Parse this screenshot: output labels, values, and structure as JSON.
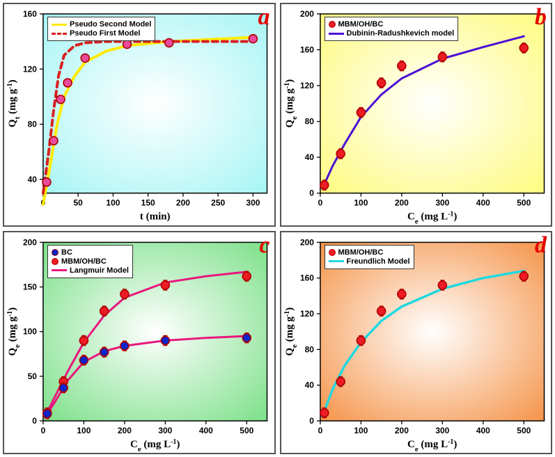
{
  "panels": {
    "a": {
      "letter": "a",
      "background_gradient": [
        "#a8f5f5",
        "#ffffff",
        "#a8f5f5"
      ],
      "border_color": "#555555",
      "xlabel": "t (min)",
      "ylabel": "Qt (mg g-1)",
      "xlim": [
        0,
        320
      ],
      "ylim": [
        30,
        160
      ],
      "xticks": [
        0,
        50,
        100,
        150,
        200,
        250,
        300
      ],
      "yticks": [
        40,
        80,
        120,
        160
      ],
      "legend_pos": "top-left",
      "legend": [
        {
          "type": "line",
          "color": "#ffeb00",
          "label": "Pseudo Second Model"
        },
        {
          "type": "dash",
          "color": "#d92020",
          "label": "Pseudo First Model"
        }
      ],
      "data_points": [
        {
          "x": 5,
          "y": 38,
          "color": "#e94b9c",
          "border": "#b00000"
        },
        {
          "x": 15,
          "y": 68,
          "color": "#e94b9c",
          "border": "#b00000"
        },
        {
          "x": 25,
          "y": 98,
          "color": "#e94b9c",
          "border": "#b00000"
        },
        {
          "x": 35,
          "y": 110,
          "color": "#e94b9c",
          "border": "#b00000"
        },
        {
          "x": 60,
          "y": 128,
          "color": "#e94b9c",
          "border": "#b00000"
        },
        {
          "x": 120,
          "y": 138,
          "color": "#e94b9c",
          "border": "#b00000"
        },
        {
          "x": 180,
          "y": 139,
          "color": "#e94b9c",
          "border": "#b00000"
        },
        {
          "x": 300,
          "y": 142,
          "color": "#e94b9c",
          "border": "#b00000"
        }
      ],
      "curves": [
        {
          "color": "#ffeb00",
          "width": 4,
          "dash": "none",
          "pts": [
            [
              0,
              22
            ],
            [
              10,
              50
            ],
            [
              20,
              80
            ],
            [
              30,
              100
            ],
            [
              45,
              115
            ],
            [
              60,
              125
            ],
            [
              90,
              133
            ],
            [
              120,
              137
            ],
            [
              180,
              140
            ],
            [
              300,
              143
            ]
          ]
        },
        {
          "color": "#d92020",
          "width": 4,
          "dash": "8,6",
          "pts": [
            [
              0,
              30
            ],
            [
              8,
              60
            ],
            [
              15,
              90
            ],
            [
              22,
              115
            ],
            [
              30,
              130
            ],
            [
              45,
              137
            ],
            [
              60,
              139
            ],
            [
              90,
              140
            ],
            [
              300,
              140
            ]
          ]
        }
      ],
      "marker_size": 6,
      "error_bar": 5,
      "label_fontsize": 15,
      "tick_fontsize": 12
    },
    "b": {
      "letter": "b",
      "background_gradient": [
        "#fffb80",
        "#ffffff",
        "#fffb80"
      ],
      "border_color": "#555555",
      "xlabel": "Ce (mg L-1)",
      "ylabel": "Qe (mg g-1)",
      "xlim": [
        0,
        550
      ],
      "ylim": [
        0,
        200
      ],
      "xticks": [
        0,
        100,
        200,
        300,
        400,
        500
      ],
      "yticks": [
        0,
        40,
        80,
        120,
        160,
        200
      ],
      "legend_pos": "top-left",
      "legend": [
        {
          "type": "circ",
          "fill": "#ed1c24",
          "border": "#b00000",
          "label": "MBM/OH/BC"
        },
        {
          "type": "line",
          "color": "#4b0fd6",
          "label": "Dubinin-Radushkevich model"
        }
      ],
      "data_points": [
        {
          "x": 10,
          "y": 9,
          "color": "#ed1c24",
          "border": "#b00000"
        },
        {
          "x": 50,
          "y": 44,
          "color": "#ed1c24",
          "border": "#b00000"
        },
        {
          "x": 100,
          "y": 90,
          "color": "#ed1c24",
          "border": "#b00000"
        },
        {
          "x": 150,
          "y": 123,
          "color": "#ed1c24",
          "border": "#b00000"
        },
        {
          "x": 200,
          "y": 142,
          "color": "#ed1c24",
          "border": "#b00000"
        },
        {
          "x": 300,
          "y": 152,
          "color": "#ed1c24",
          "border": "#b00000"
        },
        {
          "x": 500,
          "y": 162,
          "color": "#ed1c24",
          "border": "#b00000"
        }
      ],
      "curves": [
        {
          "color": "#4b0fd6",
          "width": 3,
          "dash": "none",
          "pts": [
            [
              5,
              5
            ],
            [
              30,
              30
            ],
            [
              60,
              55
            ],
            [
              100,
              85
            ],
            [
              150,
              110
            ],
            [
              200,
              128
            ],
            [
              300,
              150
            ],
            [
              400,
              163
            ],
            [
              500,
              175
            ]
          ]
        }
      ],
      "marker_size": 6,
      "error_bar": 7,
      "label_fontsize": 15,
      "tick_fontsize": 12
    },
    "c": {
      "letter": "c",
      "background_gradient": [
        "#7de08a",
        "#ffffff",
        "#7de08a"
      ],
      "border_color": "#555555",
      "xlabel": "Ce (mg L-1)",
      "ylabel": "Qe (mg g-1)",
      "xlim": [
        0,
        550
      ],
      "ylim": [
        0,
        200
      ],
      "xticks": [
        0,
        100,
        200,
        300,
        400,
        500
      ],
      "yticks": [
        0,
        50,
        100,
        150,
        200
      ],
      "legend_pos": "top-left",
      "legend": [
        {
          "type": "circ",
          "fill": "#0b24c9",
          "border": "#b00000",
          "label": "BC"
        },
        {
          "type": "circ",
          "fill": "#ed1c24",
          "border": "#b00000",
          "label": "MBM/OH/BC"
        },
        {
          "type": "line",
          "color": "#e8177d",
          "label": "Langmuir Model"
        }
      ],
      "series": [
        {
          "name": "MBM/OH/BC",
          "marker_fill": "#ed1c24",
          "marker_border": "#b00000",
          "pts": [
            [
              10,
              9
            ],
            [
              50,
              44
            ],
            [
              100,
              90
            ],
            [
              150,
              123
            ],
            [
              200,
              142
            ],
            [
              300,
              152
            ],
            [
              500,
              162
            ]
          ]
        },
        {
          "name": "BC",
          "marker_fill": "#0b24c9",
          "marker_border": "#b00000",
          "pts": [
            [
              10,
              8
            ],
            [
              50,
              37
            ],
            [
              100,
              68
            ],
            [
              150,
              77
            ],
            [
              200,
              84
            ],
            [
              300,
              90
            ],
            [
              500,
              93
            ]
          ]
        }
      ],
      "curves": [
        {
          "color": "#e8177d",
          "width": 3,
          "dash": "none",
          "pts": [
            [
              5,
              5
            ],
            [
              30,
              28
            ],
            [
              60,
              55
            ],
            [
              100,
              88
            ],
            [
              150,
              118
            ],
            [
              200,
              138
            ],
            [
              300,
              155
            ],
            [
              400,
              162
            ],
            [
              500,
              167
            ]
          ]
        },
        {
          "color": "#e8177d",
          "width": 3,
          "dash": "none",
          "pts": [
            [
              5,
              4
            ],
            [
              30,
              22
            ],
            [
              60,
              45
            ],
            [
              100,
              66
            ],
            [
              150,
              78
            ],
            [
              200,
              84
            ],
            [
              300,
              90
            ],
            [
              400,
              93
            ],
            [
              500,
              95
            ]
          ]
        }
      ],
      "marker_size": 6,
      "error_bar": 7,
      "label_fontsize": 15,
      "tick_fontsize": 12
    },
    "d": {
      "letter": "d",
      "background_gradient": [
        "#f5944a",
        "#ffffff",
        "#f5944a"
      ],
      "border_color": "#555555",
      "xlabel": "Ce (mg L-1)",
      "ylabel": "Qe (mg g-1)",
      "xlim": [
        0,
        550
      ],
      "ylim": [
        0,
        200
      ],
      "xticks": [
        0,
        100,
        200,
        300,
        400,
        500
      ],
      "yticks": [
        0,
        40,
        80,
        120,
        160,
        200
      ],
      "legend_pos": "top-left",
      "legend": [
        {
          "type": "circ",
          "fill": "#ed1c24",
          "border": "#b00000",
          "label": "MBM/OH/BC"
        },
        {
          "type": "line",
          "color": "#1fd9e0",
          "label": "Freundlich Model"
        }
      ],
      "data_points": [
        {
          "x": 10,
          "y": 9,
          "color": "#ed1c24",
          "border": "#b00000"
        },
        {
          "x": 50,
          "y": 44,
          "color": "#ed1c24",
          "border": "#b00000"
        },
        {
          "x": 100,
          "y": 90,
          "color": "#ed1c24",
          "border": "#b00000"
        },
        {
          "x": 150,
          "y": 123,
          "color": "#ed1c24",
          "border": "#b00000"
        },
        {
          "x": 200,
          "y": 142,
          "color": "#ed1c24",
          "border": "#b00000"
        },
        {
          "x": 300,
          "y": 152,
          "color": "#ed1c24",
          "border": "#b00000"
        },
        {
          "x": 500,
          "y": 162,
          "color": "#ed1c24",
          "border": "#b00000"
        }
      ],
      "curves": [
        {
          "color": "#1fd9e0",
          "width": 3.5,
          "dash": "none",
          "pts": [
            [
              5,
              5
            ],
            [
              30,
              35
            ],
            [
              60,
              62
            ],
            [
              100,
              88
            ],
            [
              150,
              112
            ],
            [
              200,
              128
            ],
            [
              300,
              148
            ],
            [
              400,
              160
            ],
            [
              500,
              168
            ]
          ]
        }
      ],
      "marker_size": 6,
      "error_bar": 7,
      "label_fontsize": 15,
      "tick_fontsize": 12
    }
  }
}
